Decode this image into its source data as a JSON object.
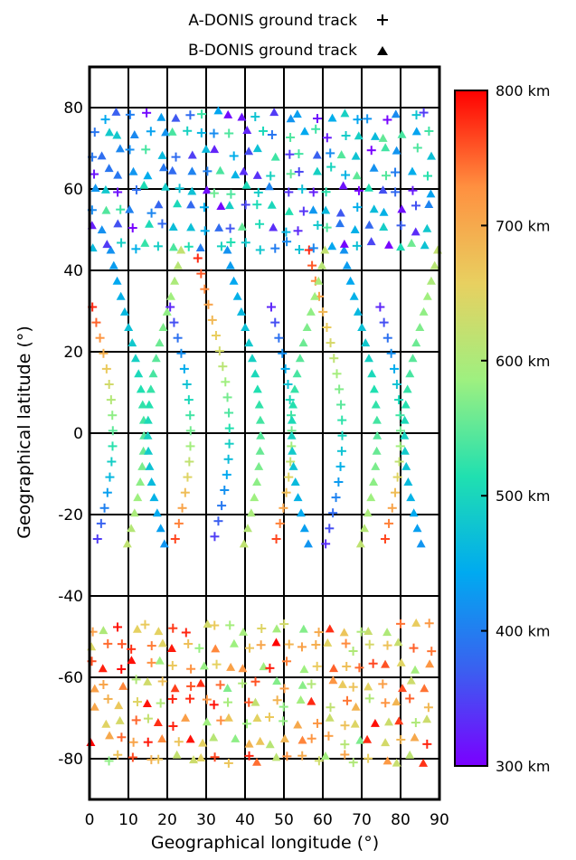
{
  "chart_data": {
    "type": "scatter",
    "xlabel": "Geographical longitude (°)",
    "ylabel": "Geographical latitude (°)",
    "xlim": [
      0,
      90
    ],
    "ylim": [
      -90,
      90
    ],
    "x_ticks": [
      0,
      10,
      20,
      30,
      40,
      50,
      60,
      70,
      80,
      90
    ],
    "y_ticks": [
      -80,
      -60,
      -40,
      -20,
      0,
      20,
      40,
      60,
      80
    ],
    "grid": true,
    "legend": {
      "placement": "top",
      "entries": [
        {
          "label": "A-DONIS ground track",
          "marker": "+"
        },
        {
          "label": "B-DONIS ground track",
          "marker": "triangle"
        }
      ]
    },
    "colorbar": {
      "min": 300,
      "max": 800,
      "ticks": [
        {
          "value": 800,
          "label": "800 km"
        },
        {
          "value": 700,
          "label": "700 km"
        },
        {
          "value": 600,
          "label": "600 km"
        },
        {
          "value": 500,
          "label": "500 km"
        },
        {
          "value": 400,
          "label": "400 km"
        },
        {
          "value": 300,
          "label": "300 km"
        }
      ],
      "colormap": [
        "#7a00ff",
        "#3a60f0",
        "#00aaf0",
        "#20e0b0",
        "#9ef080",
        "#e8d060",
        "#ff9040",
        "#ff0000"
      ]
    },
    "series": [
      {
        "name": "A-DONIS ground track",
        "marker": "+",
        "passes": [
          {
            "lon0": 1,
            "lat_start": 31,
            "lat_end": -28,
            "step": 3.8,
            "dir": 1,
            "alt_top": 780,
            "alt_bottom": 330
          },
          {
            "lon0": 21,
            "lat_start": 31,
            "lat_end": -28,
            "step": 3.8,
            "dir": 1,
            "alt_top": 330,
            "alt_bottom": 780
          },
          {
            "lon0": 31,
            "lat_start": 43,
            "lat_end": -28,
            "step": 3.8,
            "dir": 1,
            "alt_top": 780,
            "alt_bottom": 330
          },
          {
            "lon0": 47,
            "lat_start": 31,
            "lat_end": -28,
            "step": 3.8,
            "dir": 1,
            "alt_top": 330,
            "alt_bottom": 780
          },
          {
            "lon0": 60,
            "lat_start": 45,
            "lat_end": -28,
            "step": 3.8,
            "dir": 1,
            "alt_top": 780,
            "alt_bottom": 330
          },
          {
            "lon0": 75,
            "lat_start": 31,
            "lat_end": -28,
            "step": 3.8,
            "dir": 1,
            "alt_top": 330,
            "alt_bottom": 780
          }
        ]
      },
      {
        "name": "B-DONIS ground track",
        "marker": "triangle",
        "passes": [
          {
            "lon0": 9,
            "lat_start": 45,
            "lat_end": -28,
            "step": 3.8,
            "dir": 1,
            "alt_top": 420,
            "alt_bottom": 620
          },
          {
            "lon0": 20,
            "lat_start": 45,
            "lat_end": -28,
            "step": 3.8,
            "dir": -1,
            "alt_top": 620,
            "alt_bottom": 420
          },
          {
            "lon0": 39,
            "lat_start": 45,
            "lat_end": -28,
            "step": 3.8,
            "dir": 1,
            "alt_top": 420,
            "alt_bottom": 620
          },
          {
            "lon0": 57,
            "lat_start": 45,
            "lat_end": -28,
            "step": 3.8,
            "dir": -1,
            "alt_top": 620,
            "alt_bottom": 420
          },
          {
            "lon0": 69,
            "lat_start": 45,
            "lat_end": -28,
            "step": 3.8,
            "dir": 1,
            "alt_top": 420,
            "alt_bottom": 620
          },
          {
            "lon0": 86,
            "lat_start": 45,
            "lat_end": -28,
            "step": 3.8,
            "dir": -1,
            "alt_top": 620,
            "alt_bottom": 420
          }
        ]
      }
    ],
    "polar_bands": [
      {
        "lat_min": 46,
        "lat_max": 80,
        "lon_step": 3.6,
        "lat_step": 4.6,
        "alt_low": 300,
        "alt_high": 560
      },
      {
        "lat_min": -80,
        "lat_max": -46,
        "lon_step": 3.6,
        "lat_step": 4.6,
        "alt_low": 560,
        "alt_high": 800
      }
    ]
  }
}
